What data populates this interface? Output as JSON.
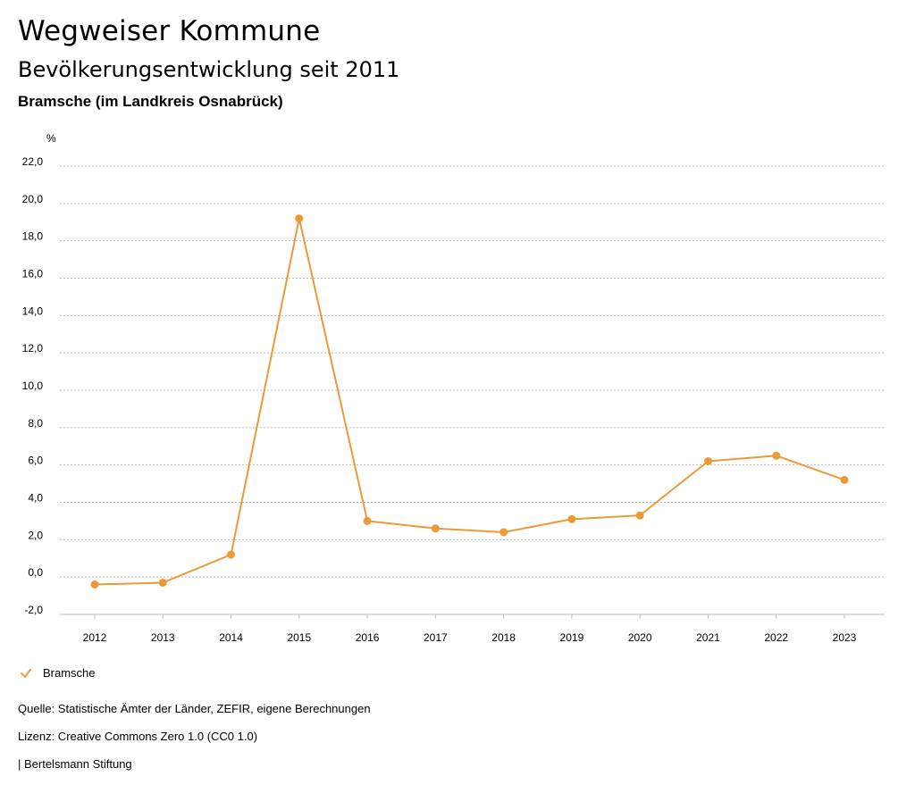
{
  "header": {
    "title": "Wegweiser Kommune",
    "subtitle": "Bevölkerungsentwicklung seit 2011",
    "region": "Bramsche (im Landkreis Osnabrück)"
  },
  "chart_data": {
    "type": "line",
    "title": "Bevölkerungsentwicklung seit 2011",
    "xlabel": "",
    "ylabel": "%",
    "ylim": [
      -2.0,
      22.0
    ],
    "yticks": [
      "22,0",
      "20,0",
      "18,0",
      "16,0",
      "14,0",
      "12,0",
      "10,0",
      "8,0",
      "6,0",
      "4,0",
      "2,0",
      "0,0",
      "-2,0"
    ],
    "ytick_values": [
      22,
      20,
      18,
      16,
      14,
      12,
      10,
      8,
      6,
      4,
      2,
      0,
      -2
    ],
    "categories": [
      "2012",
      "2013",
      "2014",
      "2015",
      "2016",
      "2017",
      "2018",
      "2019",
      "2020",
      "2021",
      "2022",
      "2023"
    ],
    "grid": true,
    "series": [
      {
        "name": "Bramsche",
        "color": "#ec9a38",
        "values": [
          -0.4,
          -0.3,
          1.2,
          19.2,
          3.0,
          2.6,
          2.4,
          3.1,
          3.3,
          6.2,
          6.5,
          5.2
        ]
      }
    ],
    "legend_position": "bottom-left"
  },
  "legend": {
    "label": "Bramsche"
  },
  "footer": {
    "source": "Quelle: Statistische Ämter der Länder, ZEFIR, eigene Berechnungen",
    "license": "Lizenz: Creative Commons Zero 1.0 (CC0 1.0)",
    "publisher": "| Bertelsmann Stiftung"
  }
}
